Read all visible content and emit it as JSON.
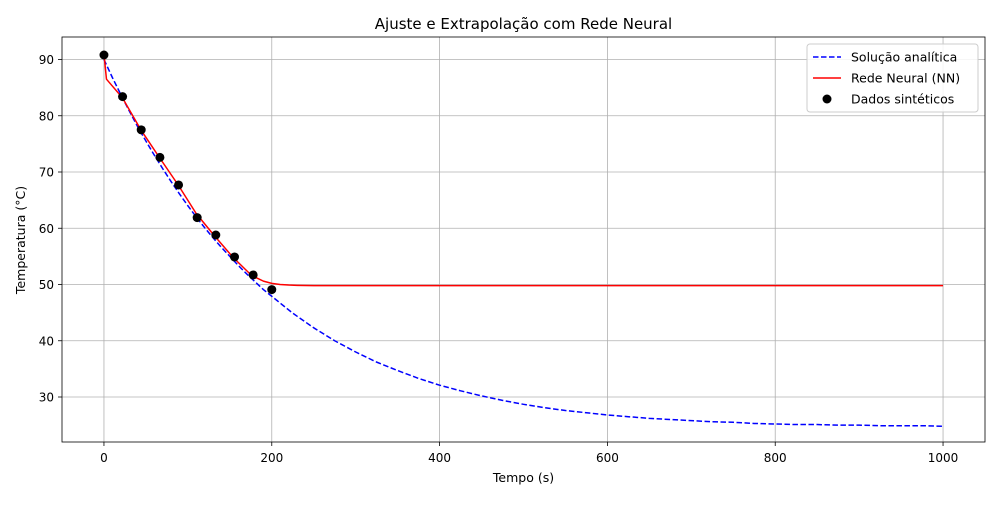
{
  "chart_data": {
    "type": "line",
    "title": "Ajuste e Extrapolação com Rede Neural",
    "xlabel": "Tempo (s)",
    "ylabel": "Temperatura (°C)",
    "xlim": [
      -50,
      1050
    ],
    "ylim": [
      22,
      94
    ],
    "x_ticks": [
      0,
      200,
      400,
      600,
      800,
      1000
    ],
    "x_tick_labels": [
      "0",
      "200",
      "400",
      "600",
      "800",
      "1000"
    ],
    "y_ticks": [
      30,
      40,
      50,
      60,
      70,
      80,
      90
    ],
    "y_tick_labels": [
      "30",
      "40",
      "50",
      "60",
      "70",
      "80",
      "90"
    ],
    "grid": true,
    "legend_position": "top-right",
    "series": [
      {
        "name": "Solução analítica",
        "kind": "line",
        "style": "dashed",
        "color": "#0000ff",
        "x": [
          0,
          10,
          20,
          30,
          40,
          50,
          60,
          70,
          80,
          90,
          100,
          110,
          120,
          130,
          140,
          150,
          160,
          170,
          180,
          190,
          200,
          225,
          250,
          275,
          300,
          325,
          350,
          375,
          400,
          425,
          450,
          475,
          500,
          525,
          550,
          575,
          600,
          625,
          650,
          675,
          700,
          725,
          750,
          775,
          800,
          825,
          850,
          875,
          900,
          925,
          950,
          975,
          1000
        ],
        "y": [
          90,
          86.8,
          83.8,
          80.9,
          78.1,
          75.5,
          73.0,
          70.6,
          68.3,
          66.1,
          64.0,
          62.0,
          60.1,
          58.3,
          56.6,
          55.0,
          53.4,
          51.9,
          50.5,
          49.1,
          47.9,
          44.9,
          42.3,
          40.0,
          38.0,
          36.2,
          34.7,
          33.3,
          32.1,
          31.1,
          30.2,
          29.4,
          28.7,
          28.1,
          27.6,
          27.2,
          26.8,
          26.5,
          26.2,
          26.0,
          25.8,
          25.6,
          25.5,
          25.3,
          25.2,
          25.1,
          25.1,
          25.0,
          25.0,
          24.9,
          24.9,
          24.9,
          24.8
        ]
      },
      {
        "name": "Rede Neural (NN)",
        "kind": "line",
        "style": "solid",
        "color": "#ff0000",
        "x": [
          0,
          3,
          22,
          44,
          66,
          88,
          110,
          132,
          154,
          176,
          190,
          200,
          210,
          220,
          230,
          250,
          280,
          320,
          400,
          600,
          800,
          1000
        ],
        "y": [
          91,
          86.5,
          83.2,
          77.5,
          72.6,
          67.8,
          62.6,
          58.6,
          54.8,
          51.6,
          50.6,
          50.2,
          50.0,
          49.9,
          49.85,
          49.8,
          49.8,
          49.8,
          49.8,
          49.8,
          49.8,
          49.8
        ]
      },
      {
        "name": "Dados sintéticos",
        "kind": "scatter",
        "color": "#000000",
        "x": [
          0,
          22.2,
          44.4,
          66.7,
          88.9,
          111.1,
          133.3,
          155.6,
          177.8,
          200
        ],
        "y": [
          90.8,
          83.4,
          77.5,
          72.6,
          67.7,
          61.9,
          58.8,
          54.9,
          51.7,
          49.1
        ]
      }
    ]
  }
}
